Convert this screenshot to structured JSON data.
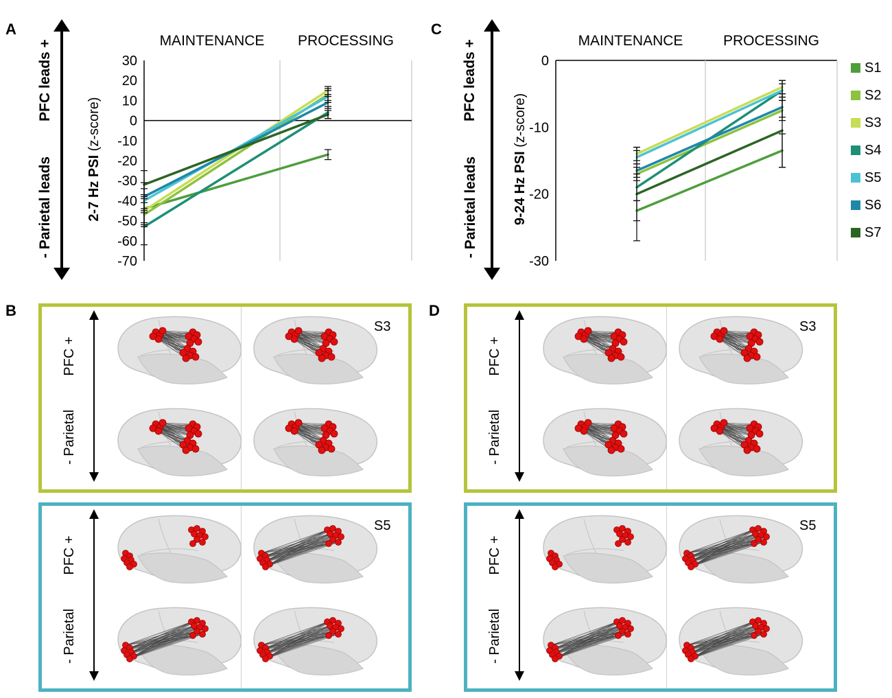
{
  "colors": {
    "S1": "#4e9e3c",
    "S2": "#8dc23e",
    "S3": "#c8dc54",
    "S4": "#1d8f76",
    "S5": "#4cc3d3",
    "S6": "#1f88a8",
    "S7": "#2c6424",
    "box_top": "#b5c43a",
    "box_bottom": "#4cb2c2",
    "node": "#e01010"
  },
  "panels": {
    "A": {
      "letter": "A",
      "lead_top": "PFC leads +",
      "lead_bottom": "- Parietal leads",
      "ylabel_bold": "2-7 Hz PSI",
      "ylabel_rest": " (z-score)"
    },
    "B": {
      "letter": "B"
    },
    "C": {
      "letter": "C",
      "lead_top": "PFC leads +",
      "lead_bottom": "- Parietal leads",
      "ylabel_bold": "9-24 Hz PSI",
      "ylabel_rest": " (z-score)"
    },
    "D": {
      "letter": "D"
    }
  },
  "legend": [
    "S1",
    "S2",
    "S3",
    "S4",
    "S5",
    "S6",
    "S7"
  ],
  "brain_panels": {
    "pfc_label": "PFC +",
    "parietal_label": "- Parietal",
    "top_subject": "S3",
    "bottom_subject": "S5"
  },
  "chart_data": [
    {
      "type": "line",
      "panel": "A",
      "title": "",
      "categories": [
        "MAINTENANCE",
        "PROCESSING"
      ],
      "xlabel": "",
      "ylabel": "2-7 Hz PSI (z-score)",
      "ylim": [
        -70,
        30
      ],
      "yticks": [
        30,
        20,
        10,
        0,
        -10,
        -20,
        -30,
        -40,
        -50,
        -60,
        -70
      ],
      "series": [
        {
          "name": "S1",
          "values": [
            -44,
            -17
          ],
          "err": [
            7,
            2.5
          ]
        },
        {
          "name": "S2",
          "values": [
            -47,
            13
          ],
          "err": [
            6,
            3
          ]
        },
        {
          "name": "S3",
          "values": [
            -45,
            15
          ],
          "err": [
            7,
            2
          ]
        },
        {
          "name": "S4",
          "values": [
            -53,
            4
          ],
          "err": [
            9,
            3
          ]
        },
        {
          "name": "S5",
          "values": [
            -40,
            12
          ],
          "err": [
            6,
            3
          ]
        },
        {
          "name": "S6",
          "values": [
            -38,
            9
          ],
          "err": [
            7,
            3
          ]
        },
        {
          "name": "S7",
          "values": [
            -32,
            3
          ],
          "err": [
            7,
            2
          ]
        }
      ]
    },
    {
      "type": "line",
      "panel": "C",
      "title": "",
      "categories": [
        "MAINTENANCE",
        "PROCESSING"
      ],
      "xlabel": "",
      "ylabel": "9-24 Hz PSI (z-score)",
      "ylim": [
        -30,
        0
      ],
      "yticks": [
        0,
        -10,
        -20,
        -30
      ],
      "series": [
        {
          "name": "S1",
          "values": [
            -22.5,
            -13.5
          ],
          "err": [
            1.5,
            2.5
          ]
        },
        {
          "name": "S2",
          "values": [
            -17,
            -7.5
          ],
          "err": [
            1,
            1.5
          ]
        },
        {
          "name": "S3",
          "values": [
            -14,
            -4
          ],
          "err": [
            1,
            1
          ]
        },
        {
          "name": "S4",
          "values": [
            -19,
            -4.5
          ],
          "err": [
            2,
            1
          ]
        },
        {
          "name": "S5",
          "values": [
            -14.5,
            -4.5
          ],
          "err": [
            1,
            1.5
          ]
        },
        {
          "name": "S6",
          "values": [
            -16.5,
            -7
          ],
          "err": [
            1,
            1.5
          ]
        },
        {
          "name": "S7",
          "values": [
            -20,
            -10.5
          ],
          "err": [
            7,
            5.5
          ]
        }
      ]
    }
  ]
}
